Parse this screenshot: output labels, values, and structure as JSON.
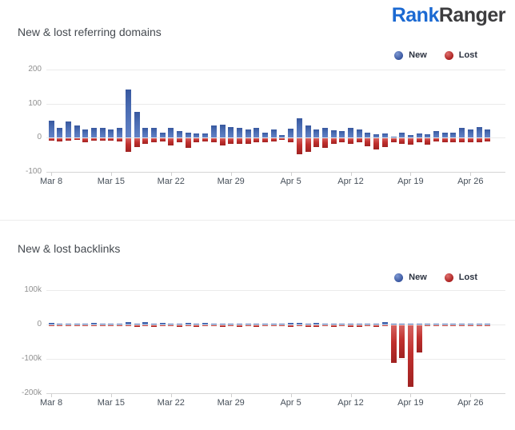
{
  "logo": {
    "rank": "Rank",
    "ranger": "Ranger",
    "rank_color": "#1b69d2",
    "ranger_color": "#3c3c3e"
  },
  "colors": {
    "new": "#4a6cb2",
    "lost": "#c0302e",
    "gridline": "#ebebeb",
    "axis": "#d4d4d4"
  },
  "chart_data": [
    {
      "type": "bar",
      "title": "New & lost referring domains",
      "legend_position": "top-right",
      "grid": true,
      "ylim": [
        -100,
        200
      ],
      "yticks": [
        {
          "value": 200,
          "label": "200"
        },
        {
          "value": 100,
          "label": "100"
        },
        {
          "value": 0,
          "label": "0"
        },
        {
          "value": -100,
          "label": "-100"
        }
      ],
      "xtick_indices": [
        0,
        7,
        14,
        21,
        28,
        35,
        42,
        49
      ],
      "xtick_labels": [
        "Mar 8",
        "Mar 15",
        "Mar 22",
        "Mar 29",
        "Apr 5",
        "Apr 12",
        "Apr 19",
        "Apr 26"
      ],
      "categories": [
        "Mar 8",
        "Mar 9",
        "Mar 10",
        "Mar 11",
        "Mar 12",
        "Mar 13",
        "Mar 14",
        "Mar 15",
        "Mar 16",
        "Mar 17",
        "Mar 18",
        "Mar 19",
        "Mar 20",
        "Mar 21",
        "Mar 22",
        "Mar 23",
        "Mar 24",
        "Mar 25",
        "Mar 26",
        "Mar 27",
        "Mar 28",
        "Mar 29",
        "Mar 30",
        "Mar 31",
        "Apr 1",
        "Apr 2",
        "Apr 3",
        "Apr 4",
        "Apr 5",
        "Apr 6",
        "Apr 7",
        "Apr 8",
        "Apr 9",
        "Apr 10",
        "Apr 11",
        "Apr 12",
        "Apr 13",
        "Apr 14",
        "Apr 15",
        "Apr 16",
        "Apr 17",
        "Apr 18",
        "Apr 19",
        "Apr 20",
        "Apr 21",
        "Apr 22",
        "Apr 23",
        "Apr 24",
        "Apr 25",
        "Apr 26",
        "Apr 27",
        "Apr 28"
      ],
      "series": [
        {
          "name": "New",
          "color": "#4a6cb2",
          "values": [
            51,
            30,
            47,
            35,
            25,
            28,
            28,
            24,
            28,
            141,
            75,
            30,
            28,
            15,
            28,
            20,
            14,
            12,
            12,
            35,
            39,
            31,
            28,
            24,
            28,
            16,
            24,
            8,
            27,
            57,
            35,
            24,
            30,
            22,
            20,
            30,
            25,
            16,
            10,
            12,
            4,
            15,
            8,
            12,
            10,
            20,
            15,
            14,
            28,
            25,
            31,
            25
          ]
        },
        {
          "name": "Lost",
          "color": "#c0302e",
          "values": [
            -6,
            -8,
            -6,
            -4,
            -11,
            -6,
            -6,
            -6,
            -8,
            -40,
            -26,
            -15,
            -10,
            -8,
            -20,
            -10,
            -28,
            -10,
            -8,
            -12,
            -20,
            -15,
            -15,
            -15,
            -12,
            -10,
            -8,
            -5,
            -10,
            -47,
            -39,
            -24,
            -28,
            -15,
            -12,
            -15,
            -12,
            -22,
            -31,
            -26,
            -12,
            -15,
            -18,
            -12,
            -18,
            -8,
            -10,
            -10,
            -10,
            -12,
            -10,
            -8
          ]
        }
      ]
    },
    {
      "type": "bar",
      "title": "New & lost backlinks",
      "legend_position": "top-right",
      "grid": true,
      "ylim": [
        -200000,
        100000
      ],
      "yticks": [
        {
          "value": 100000,
          "label": "100k"
        },
        {
          "value": 0,
          "label": "0"
        },
        {
          "value": -100000,
          "label": "-100k"
        },
        {
          "value": -200000,
          "label": "-200k"
        }
      ],
      "xtick_indices": [
        0,
        7,
        14,
        21,
        28,
        35,
        42,
        49
      ],
      "xtick_labels": [
        "Mar 8",
        "Mar 15",
        "Mar 22",
        "Mar 29",
        "Apr 5",
        "Apr 12",
        "Apr 19",
        "Apr 26"
      ],
      "categories": [
        "Mar 8",
        "Mar 9",
        "Mar 10",
        "Mar 11",
        "Mar 12",
        "Mar 13",
        "Mar 14",
        "Mar 15",
        "Mar 16",
        "Mar 17",
        "Mar 18",
        "Mar 19",
        "Mar 20",
        "Mar 21",
        "Mar 22",
        "Mar 23",
        "Mar 24",
        "Mar 25",
        "Mar 26",
        "Mar 27",
        "Mar 28",
        "Mar 29",
        "Mar 30",
        "Mar 31",
        "Apr 1",
        "Apr 2",
        "Apr 3",
        "Apr 4",
        "Apr 5",
        "Apr 6",
        "Apr 7",
        "Apr 8",
        "Apr 9",
        "Apr 10",
        "Apr 11",
        "Apr 12",
        "Apr 13",
        "Apr 14",
        "Apr 15",
        "Apr 16",
        "Apr 17",
        "Apr 18",
        "Apr 19",
        "Apr 20",
        "Apr 21",
        "Apr 22",
        "Apr 23",
        "Apr 24",
        "Apr 25",
        "Apr 26",
        "Apr 27",
        "Apr 28"
      ],
      "series": [
        {
          "name": "New",
          "color": "#4a6cb2",
          "values": [
            4000,
            1500,
            2500,
            1500,
            2000,
            5000,
            1500,
            3000,
            1500,
            6000,
            2000,
            6500,
            2000,
            4000,
            2000,
            3000,
            5500,
            2000,
            5000,
            2500,
            2000,
            2500,
            2000,
            2500,
            2000,
            2500,
            2000,
            2000,
            5500,
            4000,
            2500,
            3500,
            2000,
            2500,
            2000,
            3000,
            2000,
            2500,
            2000,
            6000,
            2500,
            2000,
            2500,
            2000,
            2500,
            2500,
            2000,
            2500,
            2000,
            2500,
            2000,
            2500
          ]
        },
        {
          "name": "Lost",
          "color": "#c0302e",
          "values": [
            -1500,
            -2000,
            -1500,
            -2000,
            -1500,
            -2000,
            -1500,
            -2000,
            -3000,
            -2500,
            -4000,
            -2000,
            -3500,
            -2000,
            -3000,
            -4000,
            -2500,
            -3500,
            -2500,
            -3000,
            -3500,
            -3000,
            -3500,
            -3000,
            -3500,
            -3000,
            -2500,
            -3000,
            -3500,
            -3000,
            -3500,
            -4000,
            -3000,
            -3500,
            -3000,
            -3500,
            -4000,
            -3000,
            -3500,
            -3000,
            -110000,
            -95000,
            -178000,
            -80000,
            -2000,
            -1500,
            -2000,
            -1500,
            -2000,
            -1500,
            -2000,
            -2500
          ]
        }
      ]
    }
  ]
}
